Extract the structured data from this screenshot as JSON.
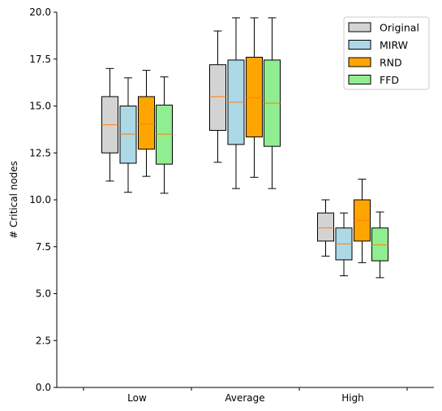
{
  "chart_data": {
    "type": "boxplot",
    "title": "",
    "xlabel": "",
    "ylabel": "# Critical nodes",
    "ylim": [
      0,
      20
    ],
    "yticks": [
      "0.0",
      "2.5",
      "5.0",
      "7.5",
      "10.0",
      "12.5",
      "15.0",
      "17.5",
      "20.0"
    ],
    "categories": [
      "Low",
      "Average",
      "High"
    ],
    "grid": false,
    "legend_position": "top-right",
    "median_color": "#ff7f0e",
    "series": [
      {
        "name": "Original",
        "color": "#d3d3d3",
        "boxes": [
          {
            "whislo": 11.0,
            "q1": 12.5,
            "med": 14.0,
            "q3": 15.5,
            "whishi": 17.0
          },
          {
            "whislo": 12.0,
            "q1": 13.7,
            "med": 15.5,
            "q3": 17.2,
            "whishi": 19.0
          },
          {
            "whislo": 7.0,
            "q1": 7.8,
            "med": 8.5,
            "q3": 9.3,
            "whishi": 10.0
          }
        ]
      },
      {
        "name": "MIRW",
        "color": "#add8e6",
        "boxes": [
          {
            "whislo": 10.4,
            "q1": 11.95,
            "med": 13.5,
            "q3": 15.0,
            "whishi": 16.5
          },
          {
            "whislo": 10.6,
            "q1": 12.95,
            "med": 15.2,
            "q3": 17.45,
            "whishi": 19.7
          },
          {
            "whislo": 5.95,
            "q1": 6.8,
            "med": 7.65,
            "q3": 8.5,
            "whishi": 9.3
          }
        ]
      },
      {
        "name": "RND",
        "color": "#ffa500",
        "boxes": [
          {
            "whislo": 11.25,
            "q1": 12.7,
            "med": 14.05,
            "q3": 15.5,
            "whishi": 16.9
          },
          {
            "whislo": 11.2,
            "q1": 13.35,
            "med": 15.45,
            "q3": 17.6,
            "whishi": 19.7
          },
          {
            "whislo": 6.65,
            "q1": 7.8,
            "med": 8.9,
            "q3": 10.0,
            "whishi": 11.1
          }
        ]
      },
      {
        "name": "FFD",
        "color": "#90ee90",
        "boxes": [
          {
            "whislo": 10.35,
            "q1": 11.9,
            "med": 13.5,
            "q3": 15.05,
            "whishi": 16.55
          },
          {
            "whislo": 10.6,
            "q1": 12.85,
            "med": 15.15,
            "q3": 17.45,
            "whishi": 19.7
          },
          {
            "whislo": 5.85,
            "q1": 6.75,
            "med": 7.6,
            "q3": 8.5,
            "whishi": 9.35
          }
        ]
      }
    ]
  }
}
